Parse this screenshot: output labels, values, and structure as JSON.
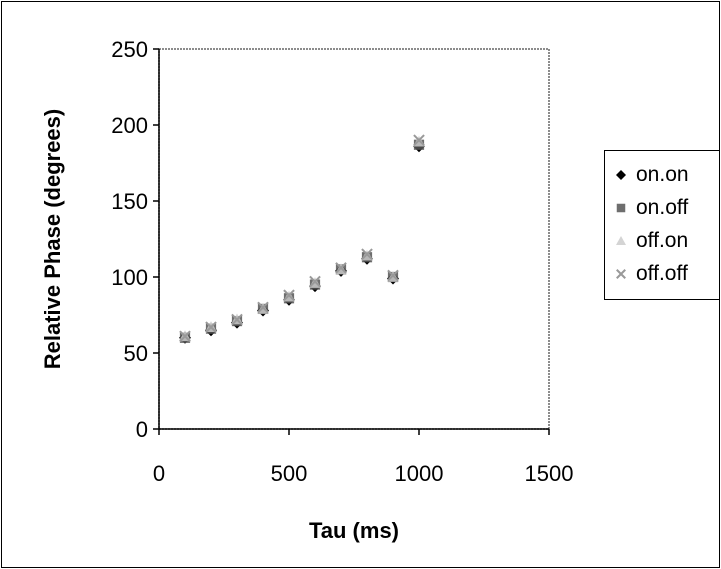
{
  "chart_data": {
    "type": "scatter",
    "title": "",
    "xlabel": "Tau (ms)",
    "ylabel": "Relative Phase (degrees)",
    "xlim": [
      0,
      1500
    ],
    "ylim": [
      0,
      250
    ],
    "xticks": [
      "0",
      "500",
      "1000",
      "1500"
    ],
    "yticks": [
      "0",
      "50",
      "100",
      "150",
      "200",
      "250"
    ],
    "grid": false,
    "legend_position": "right",
    "series": [
      {
        "name": "on.on",
        "marker": "diamond",
        "color": "#000000",
        "x": [
          100,
          200,
          300,
          400,
          500,
          600,
          700,
          800,
          900,
          1000
        ],
        "y": [
          60,
          65,
          70,
          78,
          85,
          94,
          104,
          112,
          99,
          186
        ]
      },
      {
        "name": "on.off",
        "marker": "square",
        "color": "#555555",
        "x": [
          100,
          200,
          300,
          400,
          500,
          600,
          700,
          800,
          900,
          1000
        ],
        "y": [
          60,
          66,
          71,
          79,
          86,
          95,
          105,
          113,
          100,
          187
        ]
      },
      {
        "name": "off.on",
        "marker": "triangle",
        "color": "#cccccc",
        "x": [
          100,
          200,
          300,
          400,
          500,
          600,
          700,
          800,
          900,
          1000
        ],
        "y": [
          61,
          67,
          72,
          79,
          87,
          96,
          105,
          114,
          100,
          189
        ]
      },
      {
        "name": "off.off",
        "marker": "x",
        "color": "#999999",
        "x": [
          100,
          200,
          300,
          400,
          500,
          600,
          700,
          800,
          900,
          1000
        ],
        "y": [
          61,
          67,
          72,
          80,
          88,
          97,
          106,
          115,
          101,
          190
        ]
      }
    ]
  }
}
